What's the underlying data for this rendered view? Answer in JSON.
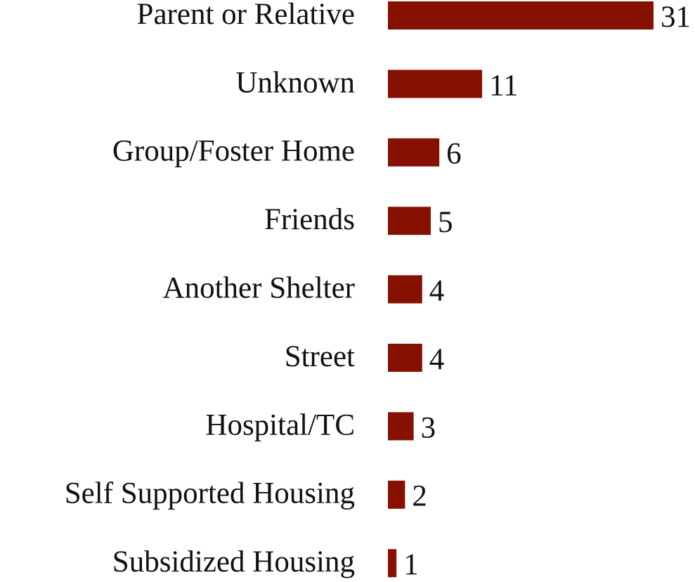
{
  "chart_data": {
    "type": "bar",
    "orientation": "horizontal",
    "categories": [
      "Parent or Relative",
      "Unknown",
      "Group/Foster Home",
      "Friends",
      "Another Shelter",
      "Street",
      "Hospital/TC",
      "Self Supported Housing",
      "Subsidized Housing"
    ],
    "values": [
      31,
      11,
      6,
      5,
      4,
      4,
      3,
      2,
      1
    ],
    "color": "#861100"
  }
}
